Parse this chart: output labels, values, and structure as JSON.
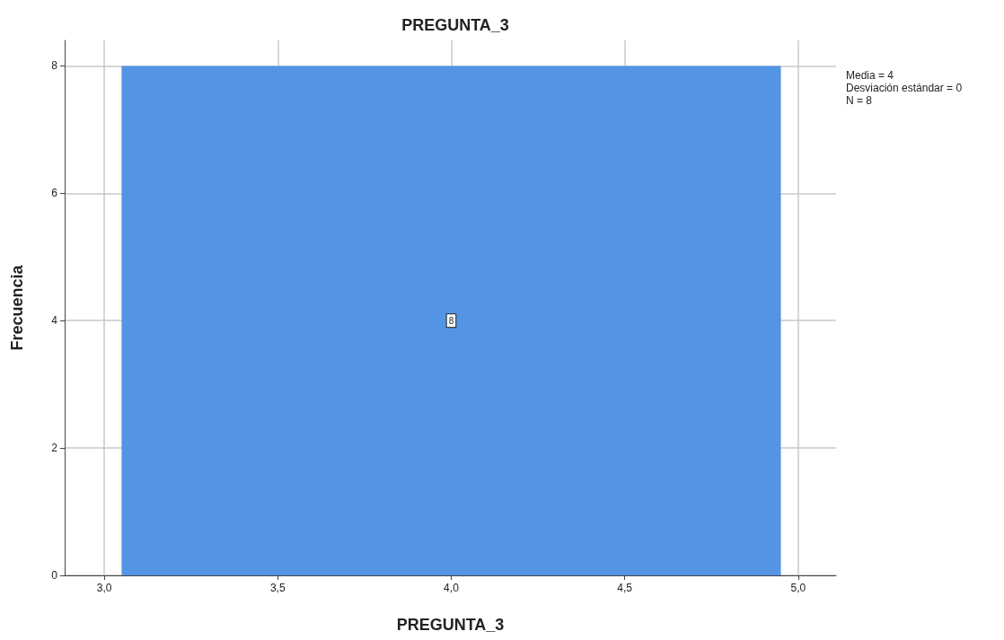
{
  "chart_data": {
    "type": "histogram",
    "title": "PREGUNTA_3",
    "xlabel": "PREGUNTA_3",
    "ylabel": "Frecuencia",
    "bins": [
      3.05,
      4.95
    ],
    "values": [
      8
    ],
    "color": "#5494e4",
    "data_labels": true,
    "xlim": [
      2.886,
      5.109
    ],
    "xticks": [
      {
        "value": 3,
        "label": "3,0"
      },
      {
        "value": 3.5,
        "label": "3,5"
      },
      {
        "value": 4,
        "label": "4,0"
      },
      {
        "value": 4.5,
        "label": "4,5"
      },
      {
        "value": 5,
        "label": "5,0"
      }
    ],
    "ylim": [
      0,
      8.4
    ],
    "yticks": [
      0,
      2,
      4,
      6,
      8
    ],
    "grid": true,
    "annotations": [
      "Media = 4",
      "Desviación estándar = 0",
      "N = 8"
    ]
  }
}
